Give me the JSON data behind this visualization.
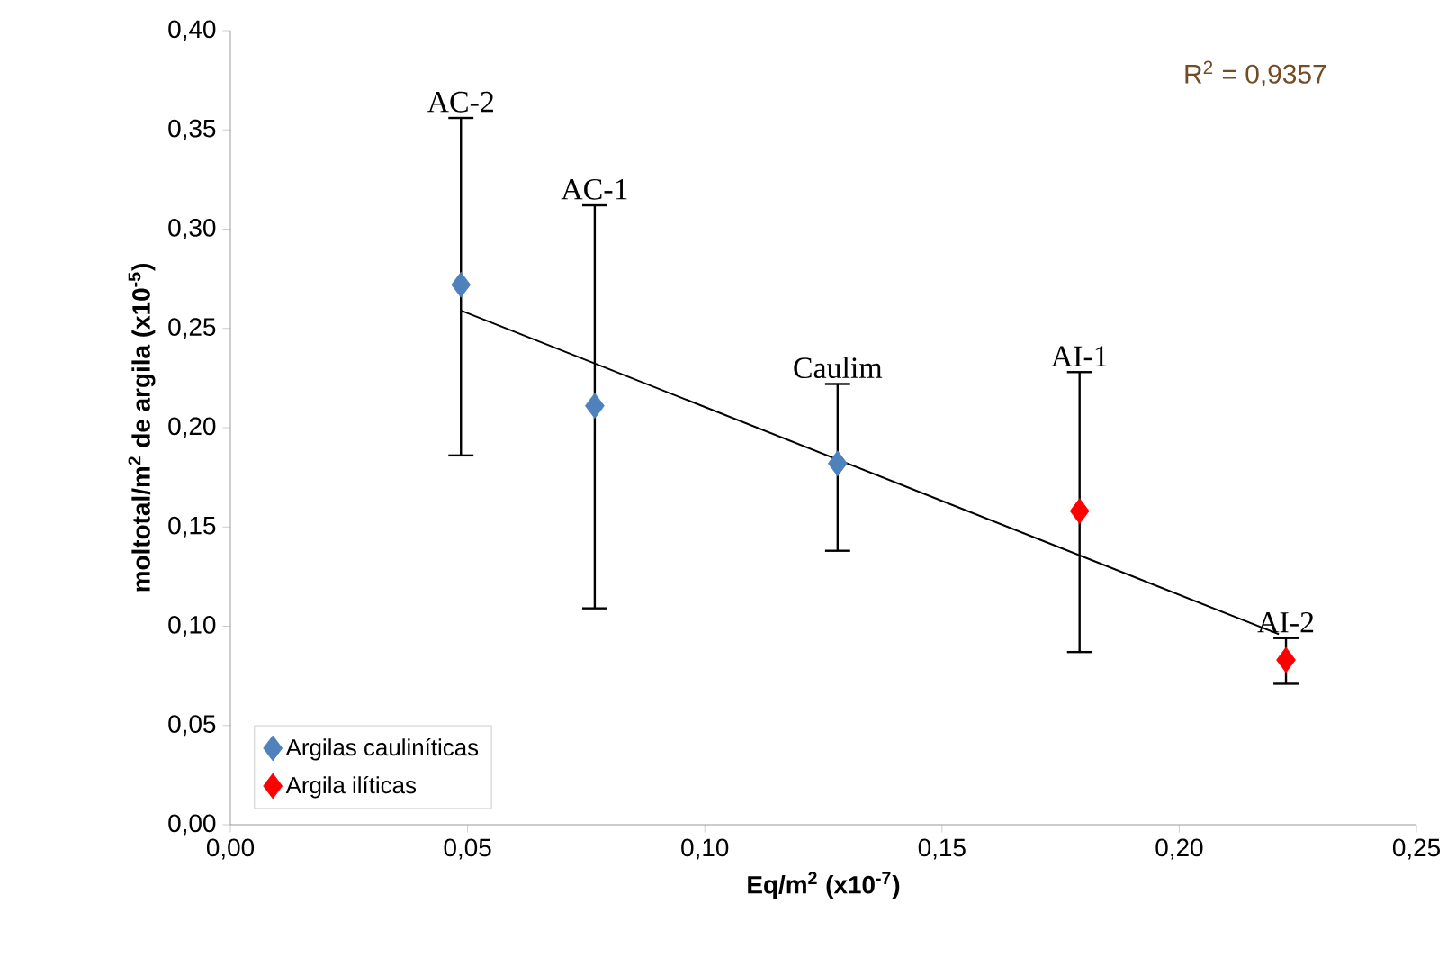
{
  "chart_data": {
    "type": "scatter",
    "xlabel": "Eq/m$^{2}$ (x10$^{-7}$)",
    "ylabel": "moltotal/m$^{2}$ de argila (x10$^{-5}$)",
    "xlim": [
      0,
      0.25
    ],
    "ylim": [
      0,
      0.4
    ],
    "xticks": [
      {
        "value": 0,
        "label": "0,00"
      },
      {
        "value": 0.05,
        "label": "0,05"
      },
      {
        "value": 0.1,
        "label": "0,10"
      },
      {
        "value": 0.15,
        "label": "0,15"
      },
      {
        "value": 0.2,
        "label": "0,20"
      },
      {
        "value": 0.25,
        "label": "0,25"
      }
    ],
    "yticks": [
      {
        "value": 0,
        "label": "0,00"
      },
      {
        "value": 0.05,
        "label": "0,05"
      },
      {
        "value": 0.1,
        "label": "0,10"
      },
      {
        "value": 0.15,
        "label": "0,15"
      },
      {
        "value": 0.2,
        "label": "0,20"
      },
      {
        "value": 0.25,
        "label": "0,25"
      },
      {
        "value": 0.3,
        "label": "0,30"
      },
      {
        "value": 0.35,
        "label": "0,35"
      },
      {
        "value": 0.4,
        "label": "0,40"
      }
    ],
    "series": [
      {
        "name": "Argilas cauliníticas",
        "color": "#4f81bd",
        "x": [
          0.0486,
          0.0768,
          0.128
        ],
        "values": [
          0.272,
          0.211,
          0.182
        ],
        "errors": [
          [
            0.186,
            0.356
          ],
          [
            0.109,
            0.312
          ],
          [
            0.138,
            0.222
          ]
        ]
      },
      {
        "name": "Argila ilíticas",
        "color": "#ff0000",
        "x": [
          0.179,
          0.2225
        ],
        "values": [
          0.158,
          0.083
        ],
        "errors": [
          [
            0.087,
            0.228
          ],
          [
            0.071,
            0.094
          ]
        ]
      },
      {
        "type": "line",
        "marker": "none",
        "color": "#000000",
        "x": [
          0.0486,
          0.221
        ],
        "values": [
          0.259,
          0.096
        ]
      }
    ],
    "annotations": [
      {
        "text": "AC-2",
        "x": 0.0486,
        "y": 0.356
      },
      {
        "text": "AC-1",
        "x": 0.0768,
        "y": 0.312
      },
      {
        "text": "Caulim",
        "x": 0.128,
        "y": 0.222
      },
      {
        "text": "AI-1",
        "x": 0.179,
        "y": 0.228
      },
      {
        "text": "AI-2",
        "x": 0.2225,
        "y": 0.094
      },
      "R$^{2}$ = 0,9357"
    ],
    "marker": "diamond",
    "legend": "bottom left",
    "grid": false
  }
}
